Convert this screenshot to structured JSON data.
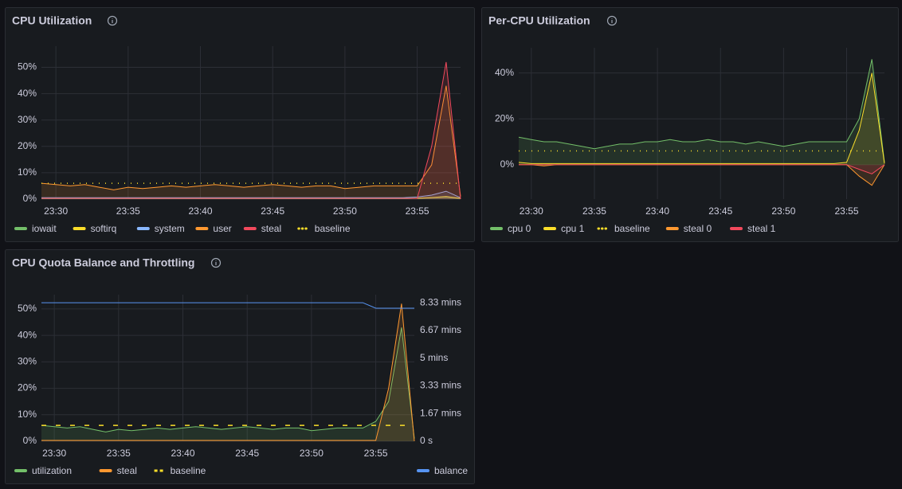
{
  "chart_data": [
    {
      "type": "line",
      "title": "CPU Utilization",
      "x": [
        "23:29",
        "23:30",
        "23:31",
        "23:32",
        "23:33",
        "23:34",
        "23:35",
        "23:36",
        "23:37",
        "23:38",
        "23:39",
        "23:40",
        "23:41",
        "23:42",
        "23:43",
        "23:44",
        "23:45",
        "23:46",
        "23:47",
        "23:48",
        "23:49",
        "23:50",
        "23:51",
        "23:52",
        "23:53",
        "23:54",
        "23:55",
        "23:56",
        "23:57",
        "23:58"
      ],
      "xticks": [
        "23:30",
        "23:35",
        "23:40",
        "23:45",
        "23:50",
        "23:55"
      ],
      "ylim": [
        0,
        58
      ],
      "yticks": [
        {
          "value": 0,
          "label": "0%"
        },
        {
          "value": 10,
          "label": "10%"
        },
        {
          "value": 20,
          "label": "20%"
        },
        {
          "value": 30,
          "label": "30%"
        },
        {
          "value": 40,
          "label": "40%"
        },
        {
          "value": 50,
          "label": "50%"
        }
      ],
      "grid": true,
      "legend": "bottom-left",
      "series": [
        {
          "name": "iowait",
          "color": "#73bf69",
          "values": [
            0.2,
            0.2,
            0.2,
            0.2,
            0.2,
            0.2,
            0.2,
            0.2,
            0.2,
            0.2,
            0.2,
            0.2,
            0.2,
            0.2,
            0.2,
            0.2,
            0.2,
            0.2,
            0.2,
            0.2,
            0.2,
            0.2,
            0.2,
            0.2,
            0.2,
            0.2,
            0.3,
            0.5,
            0.8,
            0.2
          ]
        },
        {
          "name": "softirq",
          "color": "#fade2a",
          "values": [
            0.3,
            0.3,
            0.3,
            0.3,
            0.3,
            0.3,
            0.3,
            0.3,
            0.3,
            0.3,
            0.3,
            0.3,
            0.3,
            0.3,
            0.3,
            0.3,
            0.3,
            0.3,
            0.3,
            0.3,
            0.3,
            0.3,
            0.3,
            0.3,
            0.3,
            0.3,
            0.3,
            0.6,
            1,
            0.3
          ]
        },
        {
          "name": "system",
          "color": "#8ab8ff",
          "values": [
            0.5,
            0.5,
            0.5,
            0.5,
            0.5,
            0.5,
            0.5,
            0.5,
            0.5,
            0.5,
            0.5,
            0.5,
            0.5,
            0.5,
            0.5,
            0.5,
            0.5,
            0.5,
            0.5,
            0.5,
            0.5,
            0.5,
            0.5,
            0.5,
            0.5,
            0.5,
            0.8,
            1.5,
            3,
            0.5
          ]
        },
        {
          "name": "user",
          "color": "#ff9830",
          "values": [
            6,
            5.5,
            5,
            5.5,
            4.5,
            3.5,
            4.5,
            4,
            4.5,
            5,
            4.5,
            5,
            5.5,
            5,
            4.5,
            5,
            5.5,
            5,
            4.5,
            5,
            5,
            4,
            4.5,
            5,
            5,
            5,
            5,
            13,
            43,
            1
          ]
        },
        {
          "name": "steal",
          "color": "#f2495c",
          "values": [
            0.3,
            0.3,
            0.3,
            0.3,
            0.3,
            0.3,
            0.3,
            0.3,
            0.3,
            0.3,
            0.3,
            0.3,
            0.3,
            0.3,
            0.3,
            0.3,
            0.3,
            0.3,
            0.3,
            0.3,
            0.3,
            0.3,
            0.3,
            0.3,
            0.3,
            0.3,
            0.3,
            20,
            52,
            0
          ]
        },
        {
          "name": "baseline",
          "color": "#fade2a",
          "dash": "dotted",
          "values": [
            6,
            6,
            6,
            6,
            6,
            6,
            6,
            6,
            6,
            6,
            6,
            6,
            6,
            6,
            6,
            6,
            6,
            6,
            6,
            6,
            6,
            6,
            6,
            6,
            6,
            6,
            6,
            6,
            6,
            6
          ]
        }
      ]
    },
    {
      "type": "line",
      "title": "Per-CPU Utilization",
      "x": [
        "23:29",
        "23:30",
        "23:31",
        "23:32",
        "23:33",
        "23:34",
        "23:35",
        "23:36",
        "23:37",
        "23:38",
        "23:39",
        "23:40",
        "23:41",
        "23:42",
        "23:43",
        "23:44",
        "23:45",
        "23:46",
        "23:47",
        "23:48",
        "23:49",
        "23:50",
        "23:51",
        "23:52",
        "23:53",
        "23:54",
        "23:55",
        "23:56",
        "23:57",
        "23:58"
      ],
      "xticks": [
        "23:30",
        "23:35",
        "23:40",
        "23:45",
        "23:50",
        "23:55"
      ],
      "ylim": [
        -15,
        51
      ],
      "yticks": [
        {
          "value": 0,
          "label": "0%"
        },
        {
          "value": 20,
          "label": "20%"
        },
        {
          "value": 40,
          "label": "40%"
        }
      ],
      "grid": true,
      "legend": "bottom-left",
      "series": [
        {
          "name": "cpu 0",
          "color": "#73bf69",
          "values": [
            12,
            11,
            10,
            10,
            9,
            8,
            7,
            8,
            9,
            9,
            10,
            10,
            11,
            10,
            10,
            11,
            10,
            10,
            9,
            10,
            9,
            8,
            9,
            10,
            10,
            10,
            10,
            20,
            46,
            1
          ]
        },
        {
          "name": "cpu 1",
          "color": "#fade2a",
          "values": [
            1,
            0.5,
            0.5,
            0.5,
            0.5,
            0.5,
            0.5,
            0.5,
            0.5,
            0.5,
            0.5,
            0.5,
            0.5,
            0.5,
            0.5,
            0.5,
            0.5,
            0.5,
            0.5,
            0.5,
            0.5,
            0.5,
            0.5,
            0.5,
            0.5,
            0.5,
            1,
            15,
            40,
            0.5
          ]
        },
        {
          "name": "baseline",
          "color": "#fade2a",
          "dash": "dotted",
          "values": [
            6,
            6,
            6,
            6,
            6,
            6,
            6,
            6,
            6,
            6,
            6,
            6,
            6,
            6,
            6,
            6,
            6,
            6,
            6,
            6,
            6,
            6,
            6,
            6,
            6,
            6,
            6,
            6,
            6,
            6
          ]
        },
        {
          "name": "steal 0",
          "color": "#ff9830",
          "values": [
            0,
            0,
            -0.5,
            0,
            0,
            0,
            0,
            0,
            0,
            0,
            0,
            0,
            0,
            0,
            0,
            0,
            0,
            0,
            0,
            0,
            0,
            0,
            0,
            0,
            0,
            0,
            0,
            -5,
            -9,
            0
          ]
        },
        {
          "name": "steal 1",
          "color": "#f2495c",
          "values": [
            0,
            0,
            0,
            0,
            0,
            0,
            0,
            0,
            0,
            0,
            0,
            0,
            0,
            0,
            0,
            0,
            0,
            0,
            0,
            0,
            0,
            0,
            0,
            0,
            0,
            0,
            0,
            -2,
            -4,
            0
          ]
        }
      ]
    },
    {
      "type": "line",
      "title": "CPU Quota Balance and Throttling",
      "x": [
        "23:29",
        "23:30",
        "23:31",
        "23:32",
        "23:33",
        "23:34",
        "23:35",
        "23:36",
        "23:37",
        "23:38",
        "23:39",
        "23:40",
        "23:41",
        "23:42",
        "23:43",
        "23:44",
        "23:45",
        "23:46",
        "23:47",
        "23:48",
        "23:49",
        "23:50",
        "23:51",
        "23:52",
        "23:53",
        "23:54",
        "23:55",
        "23:56",
        "23:57",
        "23:58"
      ],
      "xticks": [
        "23:30",
        "23:35",
        "23:40",
        "23:45",
        "23:50",
        "23:55"
      ],
      "ylim": [
        0,
        55.4
      ],
      "yticks": [
        {
          "value": 0,
          "label": "0%"
        },
        {
          "value": 10,
          "label": "10%"
        },
        {
          "value": 20,
          "label": "20%"
        },
        {
          "value": 30,
          "label": "30%"
        },
        {
          "value": 40,
          "label": "40%"
        },
        {
          "value": 50,
          "label": "50%"
        }
      ],
      "y2lim": [
        0,
        529
      ],
      "y2ticks": [
        {
          "value": 0,
          "label": "0 s"
        },
        {
          "value": 100,
          "label": "1.67 mins"
        },
        {
          "value": 200,
          "label": "3.33 mins"
        },
        {
          "value": 300,
          "label": "5 mins"
        },
        {
          "value": 400,
          "label": "6.67 mins"
        },
        {
          "value": 500,
          "label": "8.33 mins"
        }
      ],
      "grid": true,
      "legend": "bottom-left",
      "series": [
        {
          "name": "utilization",
          "color": "#73bf69",
          "values": [
            6,
            5.5,
            5,
            5.5,
            4.5,
            3.5,
            4.5,
            4,
            4.5,
            5,
            4.5,
            5,
            5.5,
            5,
            4.5,
            5,
            5.5,
            5,
            4.5,
            5,
            5,
            4,
            4.5,
            5,
            5,
            5,
            7.5,
            15,
            43,
            1
          ]
        },
        {
          "name": "steal",
          "color": "#ff9830",
          "values": [
            0.3,
            0.3,
            0.3,
            0.3,
            0.3,
            0.3,
            0.3,
            0.3,
            0.3,
            0.3,
            0.3,
            0.3,
            0.3,
            0.3,
            0.3,
            0.3,
            0.3,
            0.3,
            0.3,
            0.3,
            0.3,
            0.3,
            0.3,
            0.3,
            0.3,
            0.3,
            0.3,
            20,
            52,
            0
          ]
        },
        {
          "name": "baseline",
          "color": "#fade2a",
          "dash": "dashed",
          "values": [
            6,
            6,
            6,
            6,
            6,
            6,
            6,
            6,
            6,
            6,
            6,
            6,
            6,
            6,
            6,
            6,
            6,
            6,
            6,
            6,
            6,
            6,
            6,
            6,
            6,
            6,
            6,
            6,
            6,
            6
          ]
        },
        {
          "name": "balance",
          "color": "#5794f2",
          "axis": "y2",
          "values": [
            500,
            500,
            500,
            500,
            500,
            500,
            500,
            500,
            500,
            500,
            500,
            500,
            500,
            500,
            500,
            500,
            500,
            500,
            500,
            500,
            500,
            500,
            500,
            500,
            500,
            500,
            480,
            480,
            480,
            480
          ]
        }
      ]
    }
  ]
}
